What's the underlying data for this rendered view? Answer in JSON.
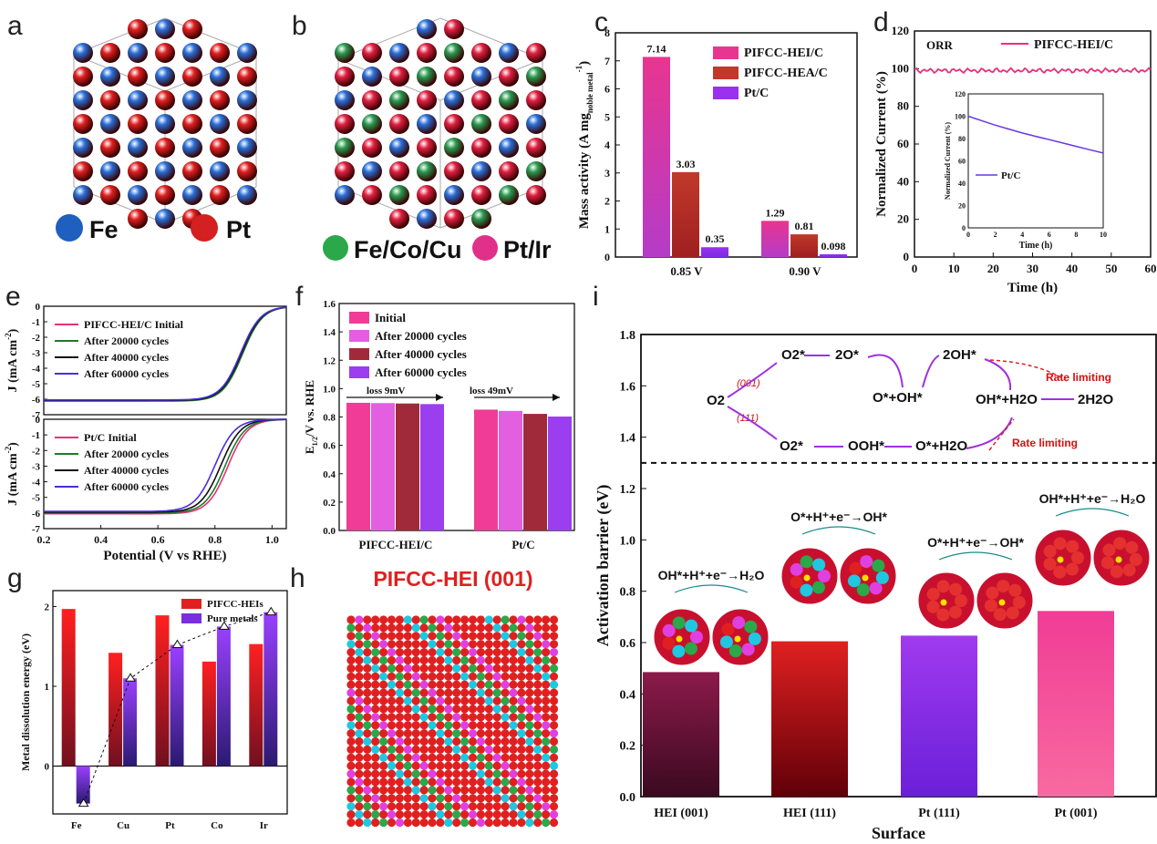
{
  "panels": {
    "a": {
      "letter": "a",
      "legend": [
        {
          "label": "Fe",
          "color": "#1f5fbf"
        },
        {
          "label": "Pt",
          "color": "#d42020"
        }
      ]
    },
    "b": {
      "letter": "b",
      "legend": [
        {
          "label": "Fe/Co/Cu",
          "color": "#2aa84a"
        },
        {
          "label": "Pt/Ir",
          "color": "#e0308a"
        }
      ]
    },
    "c": {
      "letter": "c"
    },
    "d": {
      "letter": "d"
    },
    "e": {
      "letter": "e"
    },
    "f": {
      "letter": "f"
    },
    "g": {
      "letter": "g"
    },
    "h": {
      "letter": "h",
      "title": "PIFCC-HEI (001)"
    },
    "i": {
      "letter": "i"
    }
  },
  "chart_data": [
    {
      "id": "c",
      "type": "bar",
      "categories": [
        "0.85 V",
        "0.90 V"
      ],
      "ylabel": "Mass activity (A mg",
      "ylabel_sub": "noble metal",
      "ylabel_sup": "-1",
      "ylabel_close": ")",
      "ylim": [
        0,
        8
      ],
      "yticks": [
        "0",
        "1",
        "2",
        "3",
        "4",
        "5",
        "6",
        "7",
        "8"
      ],
      "legend_pos": "top-right",
      "series": [
        {
          "name": "PIFCC-HEI/C",
          "values": [
            7.14,
            1.29
          ],
          "labels": [
            "7.14",
            "1.29"
          ],
          "color": "#e8358f"
        },
        {
          "name": "PIFCC-HEA/C",
          "values": [
            3.03,
            0.81
          ],
          "labels": [
            "3.03",
            "0.81"
          ],
          "color": "#c0392b"
        },
        {
          "name": "Pt/C",
          "values": [
            0.35,
            0.098
          ],
          "labels": [
            "0.35",
            "0.098"
          ],
          "color": "#9b30f0"
        }
      ]
    },
    {
      "id": "d",
      "type": "line",
      "xlabel": "Time (h)",
      "ylabel": "Normalized Current (%)",
      "xlim": [
        0,
        60
      ],
      "ylim": [
        0,
        120
      ],
      "xticks": [
        "0",
        "10",
        "20",
        "30",
        "40",
        "50",
        "60"
      ],
      "yticks": [
        "0",
        "20",
        "40",
        "60",
        "80",
        "100",
        "120"
      ],
      "annotation": "ORR",
      "series": [
        {
          "name": "PIFCC-HEI/C",
          "x": [
            0,
            10,
            20,
            30,
            40,
            50,
            60
          ],
          "y": [
            99,
            99,
            98.5,
            99,
            98.5,
            99,
            99.5
          ],
          "color": "#e8307a"
        }
      ],
      "inset": {
        "xlabel": "Time (h)",
        "ylabel": "Normalized Current (%)",
        "xlim": [
          0,
          10
        ],
        "ylim": [
          0,
          120
        ],
        "xticks": [
          "0",
          "2",
          "4",
          "6",
          "8",
          "10"
        ],
        "yticks": [
          "0",
          "20",
          "40",
          "60",
          "80",
          "100",
          "120"
        ],
        "series": [
          {
            "name": "Pt/C",
            "x": [
              0,
              1,
              2,
              3,
              4,
              5,
              6,
              7,
              8,
              9,
              10
            ],
            "y": [
              100,
              96,
              92,
              88.5,
              85,
              82,
              79,
              76,
              73,
              70,
              67
            ],
            "color": "#6a35e8"
          }
        ]
      }
    },
    {
      "id": "e",
      "type": "line",
      "xlabel": "Potential (V vs RHE)",
      "ylabel": "J (mA cm",
      "ylabel_sup": "-2",
      "ylabel_close": ")",
      "xlim": [
        0.2,
        1.05
      ],
      "ylim": [
        -7,
        0
      ],
      "xticks": [
        "0.2",
        "0.4",
        "0.6",
        "0.8",
        "1.0"
      ],
      "yticks": [
        "0",
        "-1",
        "-2",
        "-3",
        "-4",
        "-5",
        "-6",
        "-7"
      ],
      "top": {
        "legend_head": "PIFCC-HEI/C  Initial",
        "series": [
          {
            "name": "PIFCC-HEI/C  Initial",
            "half": 0.895,
            "lim": -6.1,
            "color": "#e8307a"
          },
          {
            "name": "After 20000 cycles",
            "half": 0.897,
            "lim": -6.12,
            "color": "#1f7a2a"
          },
          {
            "name": "After 40000 cycles",
            "half": 0.893,
            "lim": -6.08,
            "color": "#111111"
          },
          {
            "name": "After 60000 cycles",
            "half": 0.89,
            "lim": -6.05,
            "color": "#4a2ee0"
          }
        ]
      },
      "bottom": {
        "series": [
          {
            "name": "Pt/C  Initial",
            "half": 0.845,
            "lim": -6.05,
            "color": "#e8307a"
          },
          {
            "name": "After 20000 cycles",
            "half": 0.835,
            "lim": -6.0,
            "color": "#1f7a2a"
          },
          {
            "name": "After 40000 cycles",
            "half": 0.82,
            "lim": -5.95,
            "color": "#111111"
          },
          {
            "name": "After 60000 cycles",
            "half": 0.8,
            "lim": -5.9,
            "color": "#4a2ee0"
          }
        ]
      }
    },
    {
      "id": "f",
      "type": "bar",
      "categories": [
        "PIFCC-HEI/C",
        "Pt/C"
      ],
      "ylabel": "E",
      "ylabel_sub": "1/2",
      "ylabel_rest": "/V vs. RHE",
      "ylim": [
        0,
        1.6
      ],
      "yticks": [
        "0.0",
        "0.2",
        "0.4",
        "0.6",
        "0.8",
        "1.0",
        "1.2",
        "1.4",
        "1.6"
      ],
      "annotations": [
        "loss 9mV",
        "loss 49mV"
      ],
      "series": [
        {
          "name": "Initial",
          "values": [
            0.9,
            0.852
          ],
          "color": "#f03c96"
        },
        {
          "name": "After 20000 cycles",
          "values": [
            0.898,
            0.843
          ],
          "color": "#e35fe0"
        },
        {
          "name": "After 40000 cycles",
          "values": [
            0.895,
            0.822
          ],
          "color": "#a02a3a"
        },
        {
          "name": "After 60000 cycles",
          "values": [
            0.891,
            0.803
          ],
          "color": "#9a3ef0"
        }
      ]
    },
    {
      "id": "g",
      "type": "bar",
      "categories": [
        "Fe",
        "Cu",
        "Pt",
        "Co",
        "Ir"
      ],
      "ylabel": "Metal dissolution energy (eV)",
      "ylim": [
        -0.6,
        2.2
      ],
      "yticks": [
        "0",
        "1",
        "2"
      ],
      "legend_pos": "top-right",
      "series": [
        {
          "name": "PIFCC-HEIs",
          "values": [
            1.97,
            1.42,
            1.89,
            1.31,
            1.53
          ],
          "color": "#e02020"
        },
        {
          "name": "Pure metals",
          "values": [
            -0.47,
            1.1,
            1.52,
            1.75,
            1.93
          ],
          "color": "#7a2ee0"
        }
      ]
    },
    {
      "id": "i",
      "type": "bar",
      "categories": [
        "HEI (001)",
        "HEI (111)",
        "Pt (111)",
        "Pt (001)"
      ],
      "xlabel": "Surface",
      "ylabel": "Activation barrier (eV)",
      "ylim": [
        0,
        1.8
      ],
      "yticks": [
        "0.0",
        "0.2",
        "0.4",
        "0.6",
        "0.8",
        "1.0",
        "1.2",
        "1.4",
        "1.6",
        "1.8"
      ],
      "values": [
        0.485,
        0.605,
        0.627,
        0.723
      ],
      "colors": [
        "#8c1a4a",
        "#e02020",
        "#a03af0",
        "#f03c96"
      ],
      "reaction_labels": [
        "OH*+H⁺+e⁻→H₂O",
        "O*+H⁺+e⁻→OH*",
        "O*+H⁺+e⁻→OH*",
        "OH*+H⁺+e⁻→H₂O"
      ],
      "scheme": {
        "o2": "O2",
        "path001": "(001)",
        "path111": "(111)",
        "o2star_top": "O2*",
        "two_o": "2O*",
        "ooh": "O*+OH*",
        "two_oh": "2OH*",
        "o2star_bot": "O2*",
        "oohstar": "OOH*",
        "ostar_h2o": "O*+H2O",
        "ohstar_h2o": "OH*+H2O",
        "product": "2H2O",
        "rate1": "Rate limiting",
        "rate2": "Rate limiting"
      }
    }
  ]
}
